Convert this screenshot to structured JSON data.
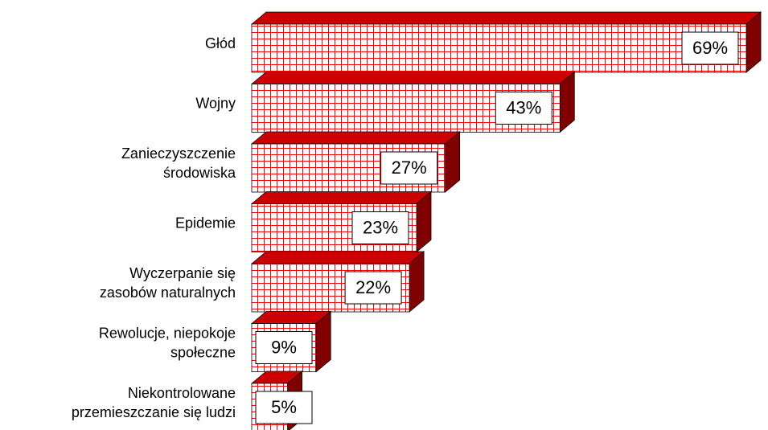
{
  "chart_data": {
    "type": "bar3d-horizontal",
    "categories": [
      "Głód",
      "Wojny",
      "Zanieczyszczenie\nśrodowiska",
      "Epidemie",
      "Wyczerpanie się\nzasobów naturalnych",
      "Rewolucje, niepokoje\nspołeczne",
      "Niekontrolowane\nprzemieszczanie się ludzi"
    ],
    "values": [
      69,
      43,
      27,
      23,
      22,
      9,
      5
    ],
    "value_labels": [
      "69%",
      "43%",
      "27%",
      "23%",
      "22%",
      "9%",
      "5%"
    ],
    "color": "#ff0000"
  }
}
